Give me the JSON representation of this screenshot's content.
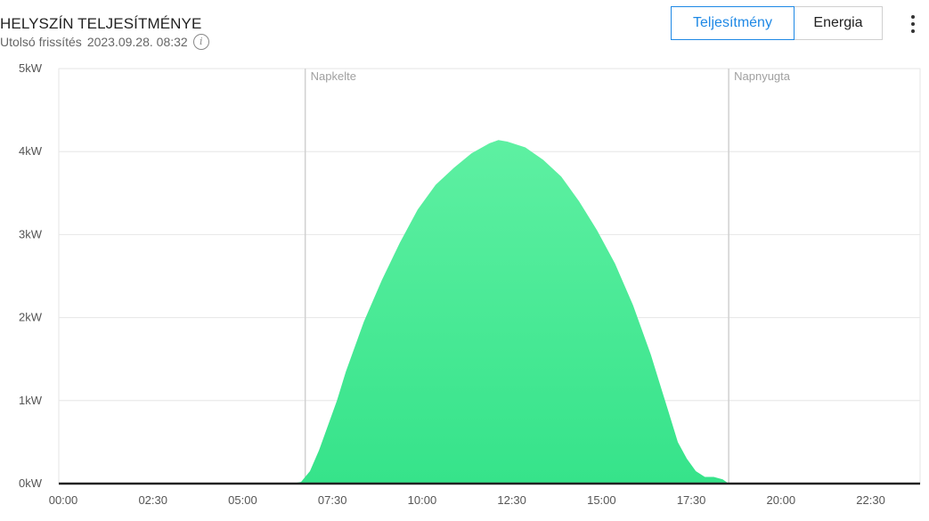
{
  "header": {
    "title": "HELYSZÍN TELJESÍTMÉNYE",
    "subtitle_label": "Utolsó frissítés",
    "subtitle_value": "2023.09.28. 08:32",
    "info_icon": "info-icon"
  },
  "tabs": [
    {
      "label": "Teljesítmény",
      "active": true
    },
    {
      "label": "Energia",
      "active": false
    }
  ],
  "menu_icon": "more-vert-icon",
  "colors": {
    "area_top": "#5ef0a2",
    "area_bottom": "#36e38a",
    "accent": "#1e88e5",
    "grid": "#e6e6e6",
    "marker": "#d0d0d0"
  },
  "chart_data": {
    "type": "area",
    "title": "",
    "xlabel": "",
    "ylabel": "",
    "y_ticks": [
      "0kW",
      "1kW",
      "2kW",
      "3kW",
      "4kW",
      "5kW"
    ],
    "ylim": [
      0,
      5
    ],
    "x_ticks": [
      "00:00",
      "02:30",
      "05:00",
      "07:30",
      "10:00",
      "12:30",
      "15:00",
      "17:30",
      "20:00",
      "22:30"
    ],
    "xlim": [
      "00:00",
      "24:00"
    ],
    "grid": true,
    "markers": [
      {
        "label": "Napkelte",
        "time": "06:52"
      },
      {
        "label": "Napnyugta",
        "time": "18:40"
      }
    ],
    "series": [
      {
        "unit": "kW",
        "points": [
          [
            "00:00",
            0
          ],
          [
            "06:30",
            0
          ],
          [
            "06:45",
            0.02
          ],
          [
            "07:00",
            0.15
          ],
          [
            "07:15",
            0.4
          ],
          [
            "07:30",
            0.7
          ],
          [
            "07:45",
            1.0
          ],
          [
            "08:00",
            1.35
          ],
          [
            "08:30",
            1.95
          ],
          [
            "09:00",
            2.45
          ],
          [
            "09:30",
            2.9
          ],
          [
            "10:00",
            3.3
          ],
          [
            "10:30",
            3.6
          ],
          [
            "11:00",
            3.8
          ],
          [
            "11:30",
            3.98
          ],
          [
            "12:00",
            4.1
          ],
          [
            "12:15",
            4.14
          ],
          [
            "12:30",
            4.12
          ],
          [
            "13:00",
            4.05
          ],
          [
            "13:30",
            3.9
          ],
          [
            "14:00",
            3.7
          ],
          [
            "14:30",
            3.4
          ],
          [
            "15:00",
            3.05
          ],
          [
            "15:30",
            2.65
          ],
          [
            "16:00",
            2.15
          ],
          [
            "16:30",
            1.55
          ],
          [
            "16:45",
            1.2
          ],
          [
            "17:00",
            0.85
          ],
          [
            "17:15",
            0.5
          ],
          [
            "17:30",
            0.3
          ],
          [
            "17:45",
            0.15
          ],
          [
            "18:00",
            0.08
          ],
          [
            "18:15",
            0.08
          ],
          [
            "18:30",
            0.05
          ],
          [
            "18:40",
            0
          ],
          [
            "24:00",
            0
          ]
        ]
      }
    ]
  }
}
